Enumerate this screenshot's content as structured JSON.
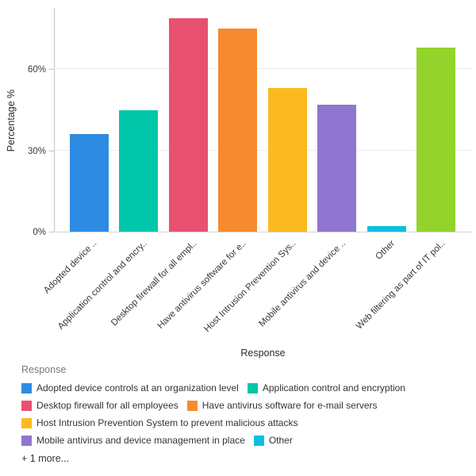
{
  "chart_data": {
    "type": "bar",
    "title": "",
    "xlabel": "Response",
    "ylabel": "Percentage %",
    "categories": [
      "Adopted device controls at an organization level",
      "Application control and encryption",
      "Desktop firewall for all employees",
      "Have antivirus software for e-mail servers",
      "Host Intrusion Prevention System to prevent malicious attacks",
      "Mobile antivirus and device management in place",
      "Other",
      "Web filtering as part of IT pol.."
    ],
    "tick_labels": [
      "Adopted device ..",
      "Application control and encry..",
      "Desktop firewall for all empl..",
      "Have antivirus software for e..",
      "Host Intrusion Prevention Sys..",
      "Mobile antivirus and device ..",
      "Other",
      "Web filtering as part of IT pol.."
    ],
    "values": [
      36,
      45,
      79,
      75,
      53,
      47,
      2,
      68
    ],
    "colors": [
      "#2E8BE2",
      "#00C7A9",
      "#E85070",
      "#F68A2E",
      "#FBBA1F",
      "#8F75CF",
      "#0BC0DE",
      "#93D32B"
    ],
    "yticks": [
      0,
      30,
      60
    ],
    "ytick_labels": [
      "0%",
      "30%",
      "60%"
    ],
    "ylim": [
      0,
      83
    ],
    "grid": true,
    "legend_position": "bottom"
  },
  "legend": {
    "title": "Response",
    "items": [
      {
        "label": "Adopted device controls at an organization level",
        "color": "#2E8BE2"
      },
      {
        "label": "Application control and encryption",
        "color": "#00C7A9"
      },
      {
        "label": "Desktop firewall for all employees",
        "color": "#E85070"
      },
      {
        "label": "Have antivirus software for e-mail servers",
        "color": "#F68A2E"
      },
      {
        "label": "Host Intrusion Prevention System to prevent malicious attacks",
        "color": "#FBBA1F"
      },
      {
        "label": "Mobile antivirus and device management in place",
        "color": "#8F75CF"
      },
      {
        "label": "Other",
        "color": "#0BC0DE"
      }
    ],
    "more_label": "+ 1 more..."
  }
}
